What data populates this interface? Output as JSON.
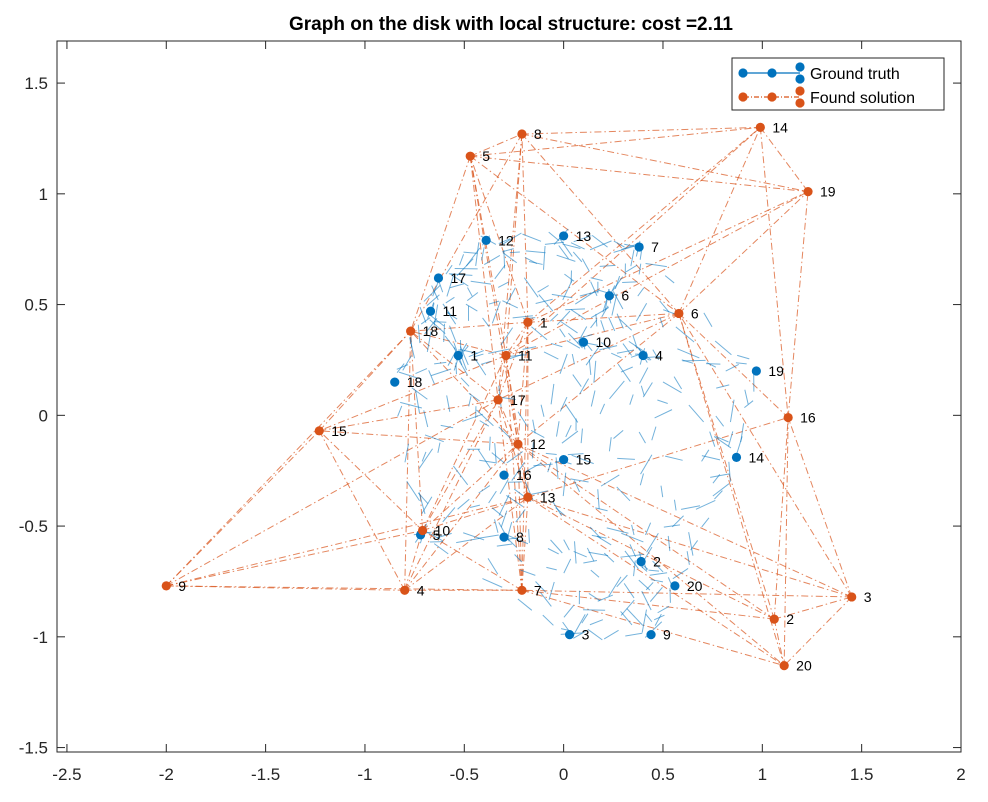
{
  "chart_data": {
    "type": "scatter",
    "title": "Graph on the disk with local structure: cost =2.11",
    "xlim": [
      -2.55,
      2.0
    ],
    "ylim": [
      -1.52,
      1.69
    ],
    "x_ticks": [
      -2.5,
      -2,
      -1.5,
      -1,
      -0.5,
      0,
      0.5,
      1,
      1.5,
      2
    ],
    "x_tick_labels": [
      "-2.5",
      "-2",
      "-1.5",
      "-1",
      "-0.5",
      "0",
      "0.5",
      "1",
      "1.5",
      "2"
    ],
    "y_ticks": [
      -1.5,
      -1,
      -0.5,
      0,
      0.5,
      1,
      1.5
    ],
    "y_tick_labels": [
      "-1.5",
      "-1",
      "-0.5",
      "0",
      "0.5",
      "1",
      "1.5"
    ],
    "grid": false,
    "legend_position": "top-right",
    "series": [
      {
        "name": "Ground truth",
        "color": "#0072BD",
        "line_style": "solid",
        "points": [
          {
            "label": "1",
            "x": -0.53,
            "y": 0.27
          },
          {
            "label": "2",
            "x": 0.39,
            "y": -0.66
          },
          {
            "label": "3",
            "x": 0.03,
            "y": -0.99
          },
          {
            "label": "4",
            "x": 0.4,
            "y": 0.27
          },
          {
            "label": "5",
            "x": -0.72,
            "y": -0.54
          },
          {
            "label": "6",
            "x": 0.23,
            "y": 0.54
          },
          {
            "label": "7",
            "x": 0.38,
            "y": 0.76
          },
          {
            "label": "8",
            "x": -0.3,
            "y": -0.55
          },
          {
            "label": "9",
            "x": 0.44,
            "y": -0.99
          },
          {
            "label": "10",
            "x": 0.1,
            "y": 0.33
          },
          {
            "label": "11",
            "x": -0.67,
            "y": 0.47
          },
          {
            "label": "12",
            "x": -0.39,
            "y": 0.79
          },
          {
            "label": "13",
            "x": 0.0,
            "y": 0.81
          },
          {
            "label": "14",
            "x": 0.87,
            "y": -0.19
          },
          {
            "label": "15",
            "x": 0.0,
            "y": -0.2
          },
          {
            "label": "16",
            "x": -0.3,
            "y": -0.27
          },
          {
            "label": "17",
            "x": -0.63,
            "y": 0.62
          },
          {
            "label": "18",
            "x": -0.85,
            "y": 0.15
          },
          {
            "label": "19",
            "x": 0.97,
            "y": 0.2
          },
          {
            "label": "20",
            "x": 0.56,
            "y": -0.77
          }
        ]
      },
      {
        "name": "Found solution",
        "color": "#D95319",
        "line_style": "dash-dot",
        "points": [
          {
            "label": "1",
            "x": -0.18,
            "y": 0.42
          },
          {
            "label": "2",
            "x": 1.06,
            "y": -0.92
          },
          {
            "label": "3",
            "x": 1.45,
            "y": -0.82
          },
          {
            "label": "4",
            "x": -0.8,
            "y": -0.79
          },
          {
            "label": "5",
            "x": -0.47,
            "y": 1.17
          },
          {
            "label": "6",
            "x": 0.58,
            "y": 0.46
          },
          {
            "label": "7",
            "x": -0.21,
            "y": -0.79
          },
          {
            "label": "8",
            "x": -0.21,
            "y": 1.27
          },
          {
            "label": "9",
            "x": -2.0,
            "y": -0.77
          },
          {
            "label": "10",
            "x": -0.71,
            "y": -0.52
          },
          {
            "label": "11",
            "x": -0.29,
            "y": 0.27
          },
          {
            "label": "12",
            "x": -0.23,
            "y": -0.13
          },
          {
            "label": "13",
            "x": -0.18,
            "y": -0.37
          },
          {
            "label": "14",
            "x": 0.99,
            "y": 1.3
          },
          {
            "label": "15",
            "x": -1.23,
            "y": -0.07
          },
          {
            "label": "16",
            "x": 1.13,
            "y": -0.01
          },
          {
            "label": "17",
            "x": -0.33,
            "y": 0.07
          },
          {
            "label": "18",
            "x": -0.77,
            "y": 0.38
          },
          {
            "label": "19",
            "x": 1.23,
            "y": 1.01
          },
          {
            "label": "20",
            "x": 1.11,
            "y": -1.13
          }
        ]
      }
    ]
  }
}
